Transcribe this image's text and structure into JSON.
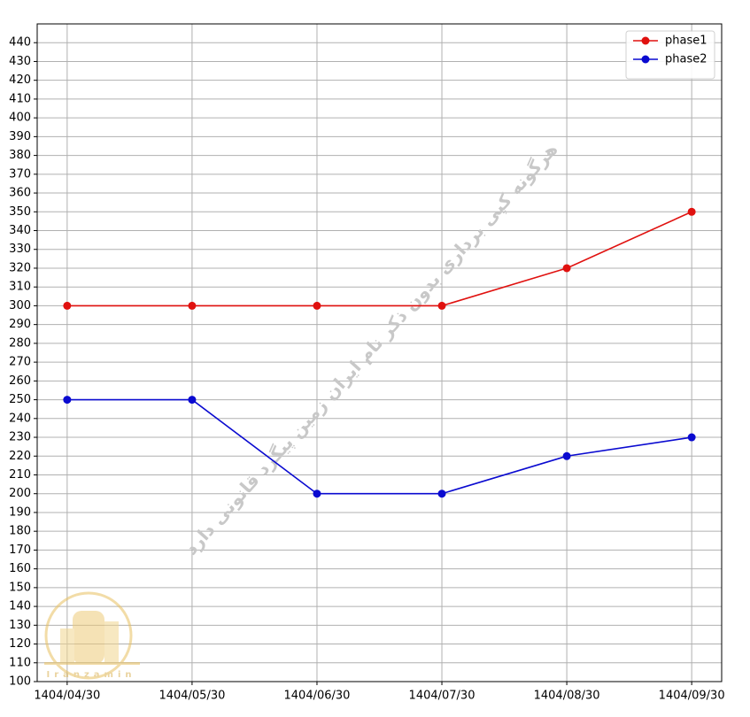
{
  "chart_data": {
    "type": "line",
    "categories": [
      "1404/04/30",
      "1404/05/30",
      "1404/06/30",
      "1404/07/30",
      "1404/08/30",
      "1404/09/30"
    ],
    "series": [
      {
        "name": "phase1",
        "color": "#e0110f",
        "values": [
          300,
          300,
          300,
          300,
          320,
          350
        ]
      },
      {
        "name": "phase2",
        "color": "#0a0ad0",
        "values": [
          250,
          250,
          200,
          200,
          220,
          230
        ]
      }
    ],
    "ylim": [
      100,
      450
    ],
    "yticks": [
      100,
      110,
      120,
      130,
      140,
      150,
      160,
      170,
      180,
      190,
      200,
      210,
      220,
      230,
      240,
      250,
      260,
      270,
      280,
      290,
      300,
      310,
      320,
      330,
      340,
      350,
      360,
      370,
      380,
      390,
      400,
      410,
      420,
      430,
      440
    ],
    "grid": true,
    "legend": "upper right",
    "watermark": "هرگونه کپی برداری بدون ذکر نام ایران زمین پیگرد قانونی دارد",
    "logo_text": "Iranzamin"
  }
}
